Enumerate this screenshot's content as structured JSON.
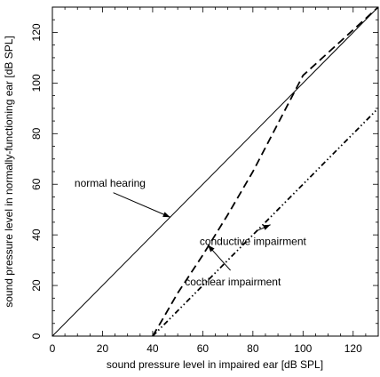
{
  "chart_data": {
    "type": "line",
    "title": "",
    "xlabel": "sound pressure level in impaired ear [dB SPL]",
    "ylabel": "sound pressure level in normally-functioning ear [dB SPL]",
    "xlim": [
      0,
      130
    ],
    "ylim": [
      0,
      130
    ],
    "x_ticks": [
      "0",
      "20",
      "40",
      "60",
      "80",
      "100",
      "120"
    ],
    "y_ticks": [
      "0",
      "20",
      "40",
      "60",
      "80",
      "100",
      "120"
    ],
    "grid": false,
    "series": [
      {
        "name": "normal hearing",
        "style": "solid",
        "x": [
          0,
          130
        ],
        "y": [
          0,
          130
        ]
      },
      {
        "name": "cochlear impairment",
        "style": "dashed",
        "x": [
          40,
          43,
          50,
          60,
          70,
          80,
          90,
          100,
          110,
          120,
          130
        ],
        "y": [
          0,
          5,
          17,
          32,
          48,
          65,
          84,
          103,
          112,
          121,
          130
        ]
      },
      {
        "name": "conductive impairment",
        "style": "dash-dot-dot",
        "x": [
          40,
          50,
          60,
          70,
          80,
          90,
          100,
          110,
          120,
          130
        ],
        "y": [
          0,
          10,
          20,
          30,
          40,
          50,
          60,
          70,
          80,
          90
        ]
      }
    ],
    "annotations": [
      {
        "text": "normal hearing",
        "x": 23,
        "y": 59,
        "arrow_to": [
          47,
          47
        ]
      },
      {
        "text": "conductive impairment",
        "x": 80,
        "y": 36,
        "arrow_to": [
          87,
          44
        ]
      },
      {
        "text": "cochlear impairment",
        "x": 72,
        "y": 20,
        "arrow_to": [
          62,
          36
        ]
      }
    ]
  }
}
